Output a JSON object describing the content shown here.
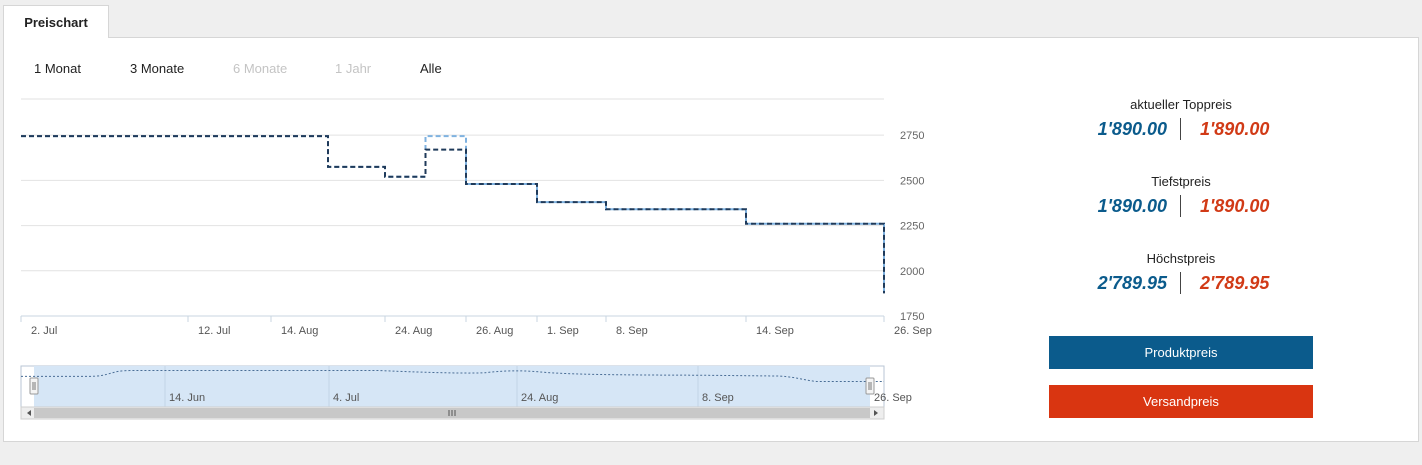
{
  "tab": {
    "label": "Preischart"
  },
  "ranges": [
    {
      "label": "1 Monat",
      "enabled": true
    },
    {
      "label": "3 Monate",
      "enabled": true
    },
    {
      "label": "6 Monate",
      "enabled": false
    },
    {
      "label": "1 Jahr",
      "enabled": false
    },
    {
      "label": "Alle",
      "enabled": true
    }
  ],
  "chart_data": {
    "type": "line",
    "step": true,
    "ylim": [
      1750,
      2950
    ],
    "yticks": [
      1750,
      2000,
      2250,
      2500,
      2750
    ],
    "xlabels": [
      "2. Jul",
      "12. Jul",
      "14. Aug",
      "24. Aug",
      "26. Aug",
      "1. Sep",
      "8. Sep",
      "14. Sep",
      "26. Sep"
    ],
    "grid": true,
    "colors": {
      "product": "#1f3a5a",
      "shipping": "#7fb2e0"
    },
    "series": [
      {
        "key": "product",
        "points": [
          [
            0,
            2745
          ],
          [
            1,
            2745
          ],
          [
            2,
            2745
          ],
          [
            2.5,
            2575
          ],
          [
            3,
            2520
          ],
          [
            3.5,
            2670
          ],
          [
            4,
            2480
          ],
          [
            5,
            2380
          ],
          [
            6,
            2340
          ],
          [
            7,
            2260
          ],
          [
            8,
            1875
          ]
        ]
      },
      {
        "key": "shipping",
        "points": [
          [
            0,
            2745
          ],
          [
            1,
            2745
          ],
          [
            2,
            2745
          ],
          [
            2.5,
            2575
          ],
          [
            3,
            2520
          ],
          [
            3.5,
            2745
          ],
          [
            4,
            2480
          ],
          [
            5,
            2380
          ],
          [
            6,
            2340
          ],
          [
            7,
            2260
          ],
          [
            8,
            1875
          ]
        ]
      }
    ],
    "navigator": {
      "labels": [
        "14. Jun",
        "4. Jul",
        "24. Aug",
        "8. Sep",
        "26. Sep"
      ]
    }
  },
  "stats": [
    {
      "label": "aktueller Toppreis",
      "product": "1'890.00",
      "shipping": "1'890.00"
    },
    {
      "label": "Tiefstpreis",
      "product": "1'890.00",
      "shipping": "1'890.00"
    },
    {
      "label": "Höchstpreis",
      "product": "2'789.95",
      "shipping": "2'789.95"
    }
  ],
  "buttons": {
    "product": "Produktpreis",
    "shipping": "Versandpreis",
    "product_color": "#0b5b8c",
    "shipping_color": "#d93511"
  }
}
